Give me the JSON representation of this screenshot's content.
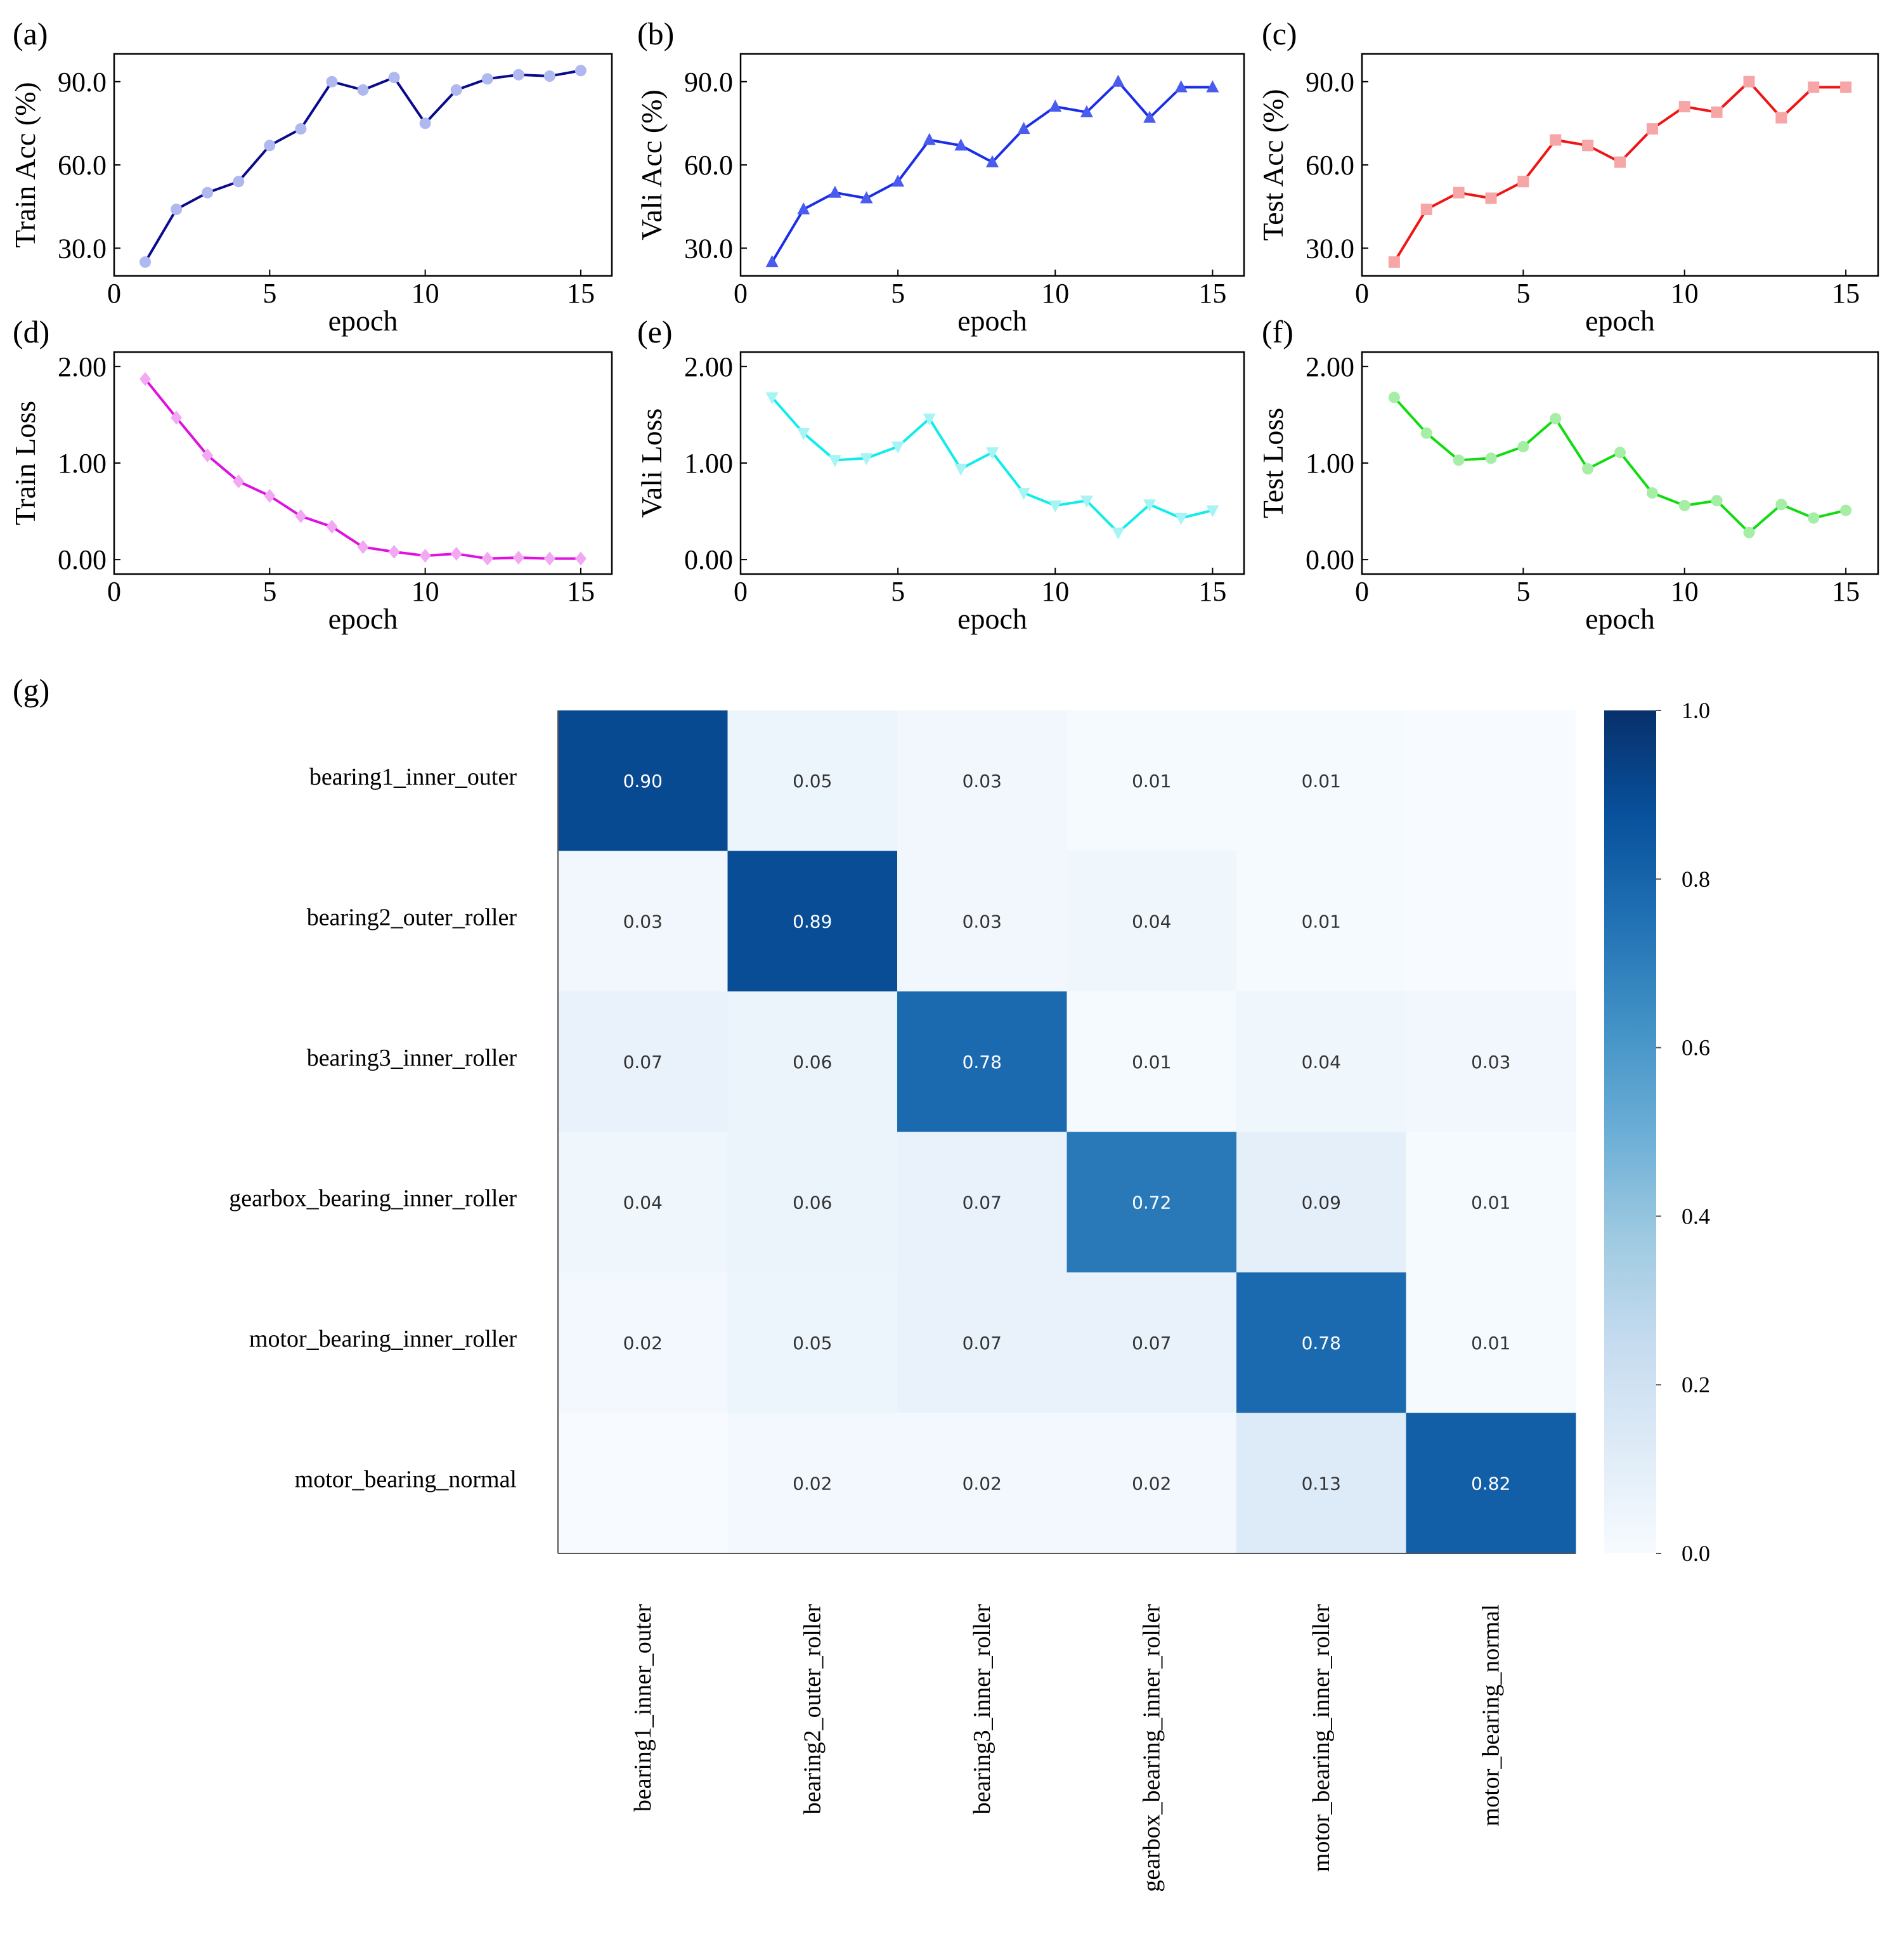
{
  "chart_data": [
    {
      "panel": "(a)",
      "type": "line",
      "xlabel": "epoch",
      "ylabel": "Train Acc (%)",
      "xlim": [
        0,
        16
      ],
      "ylim": [
        20,
        100
      ],
      "xticks": [
        0,
        5,
        10,
        15
      ],
      "xtick_labels": [
        "0",
        "5",
        "10",
        "15"
      ],
      "yticks": [
        30,
        60,
        90
      ],
      "ytick_labels": [
        "30.0",
        "60.0",
        "90.0"
      ],
      "series": [
        {
          "x": [
            1,
            2,
            3,
            4,
            5,
            6,
            7,
            8,
            9,
            10,
            11,
            12,
            13,
            14,
            15
          ],
          "y": [
            25,
            44,
            50,
            54,
            67,
            73,
            90,
            87,
            91.5,
            75,
            87,
            91,
            92.5,
            92,
            94
          ],
          "line_color": "#0a0a8c",
          "marker_color": "#b0b8f0",
          "marker": "circle"
        }
      ],
      "grid": false
    },
    {
      "panel": "(b)",
      "type": "line",
      "xlabel": "epoch",
      "ylabel": "Vali Acc (%)",
      "xlim": [
        0,
        16
      ],
      "ylim": [
        20,
        100
      ],
      "xticks": [
        0,
        5,
        10,
        15
      ],
      "xtick_labels": [
        "0",
        "5",
        "10",
        "15"
      ],
      "yticks": [
        30,
        60,
        90
      ],
      "ytick_labels": [
        "30.0",
        "60.0",
        "90.0"
      ],
      "series": [
        {
          "x": [
            1,
            2,
            3,
            4,
            5,
            6,
            7,
            8,
            9,
            10,
            11,
            12,
            13,
            14,
            15
          ],
          "y": [
            25,
            44,
            50,
            48,
            54,
            69,
            67,
            61,
            73,
            81,
            79,
            90,
            77,
            88,
            88
          ],
          "line_color": "#1a2ee8",
          "marker_color": "#4a5cf0",
          "marker": "triangle-up"
        }
      ],
      "grid": false
    },
    {
      "panel": "(c)",
      "type": "line",
      "xlabel": "epoch",
      "ylabel": "Test Acc (%)",
      "xlim": [
        0,
        16
      ],
      "ylim": [
        20,
        100
      ],
      "xticks": [
        0,
        5,
        10,
        15
      ],
      "xtick_labels": [
        "0",
        "5",
        "10",
        "15"
      ],
      "yticks": [
        30,
        60,
        90
      ],
      "ytick_labels": [
        "30.0",
        "60.0",
        "90.0"
      ],
      "series": [
        {
          "x": [
            1,
            2,
            3,
            4,
            5,
            6,
            7,
            8,
            9,
            10,
            11,
            12,
            13,
            14,
            15
          ],
          "y": [
            25,
            44,
            50,
            48,
            54,
            69,
            67,
            61,
            73,
            81,
            79,
            90,
            77,
            88,
            88
          ],
          "line_color": "#f01414",
          "marker_color": "#f6a6a6",
          "marker": "square"
        }
      ],
      "grid": false
    },
    {
      "panel": "(d)",
      "type": "line",
      "xlabel": "epoch",
      "ylabel": "Train Loss",
      "xlim": [
        0,
        16
      ],
      "ylim": [
        -0.15,
        2.15
      ],
      "xticks": [
        0,
        5,
        10,
        15
      ],
      "xtick_labels": [
        "0",
        "5",
        "10",
        "15"
      ],
      "yticks": [
        0,
        1,
        2
      ],
      "ytick_labels": [
        "0.00",
        "1.00",
        "2.00"
      ],
      "series": [
        {
          "x": [
            1,
            2,
            3,
            4,
            5,
            6,
            7,
            8,
            9,
            10,
            11,
            12,
            13,
            14,
            15
          ],
          "y": [
            1.87,
            1.47,
            1.08,
            0.81,
            0.66,
            0.45,
            0.34,
            0.13,
            0.08,
            0.04,
            0.06,
            0.01,
            0.02,
            0.01,
            0.01
          ],
          "line_color": "#e010e0",
          "marker_color": "#f3a8f3",
          "marker": "diamond"
        }
      ],
      "grid": false
    },
    {
      "panel": "(e)",
      "type": "line",
      "xlabel": "epoch",
      "ylabel": "Vali Loss",
      "xlim": [
        0,
        16
      ],
      "ylim": [
        -0.15,
        2.15
      ],
      "xticks": [
        0,
        5,
        10,
        15
      ],
      "xtick_labels": [
        "0",
        "5",
        "10",
        "15"
      ],
      "yticks": [
        0,
        1,
        2
      ],
      "ytick_labels": [
        "0.00",
        "1.00",
        "2.00"
      ],
      "series": [
        {
          "x": [
            1,
            2,
            3,
            4,
            5,
            6,
            7,
            8,
            9,
            10,
            11,
            12,
            13,
            14,
            15
          ],
          "y": [
            1.68,
            1.31,
            1.03,
            1.05,
            1.17,
            1.46,
            0.94,
            1.11,
            0.69,
            0.56,
            0.61,
            0.28,
            0.57,
            0.43,
            0.51
          ],
          "line_color": "#10ecec",
          "marker_color": "#a6f4f4",
          "marker": "triangle-down"
        }
      ],
      "grid": false
    },
    {
      "panel": "(f)",
      "type": "line",
      "xlabel": "epoch",
      "ylabel": "Test Loss",
      "xlim": [
        0,
        16
      ],
      "ylim": [
        -0.15,
        2.15
      ],
      "xticks": [
        0,
        5,
        10,
        15
      ],
      "xtick_labels": [
        "0",
        "5",
        "10",
        "15"
      ],
      "yticks": [
        0,
        1,
        2
      ],
      "ytick_labels": [
        "0.00",
        "1.00",
        "2.00"
      ],
      "series": [
        {
          "x": [
            1,
            2,
            3,
            4,
            5,
            6,
            7,
            8,
            9,
            10,
            11,
            12,
            13,
            14,
            15
          ],
          "y": [
            1.68,
            1.31,
            1.03,
            1.05,
            1.17,
            1.46,
            0.94,
            1.11,
            0.69,
            0.56,
            0.61,
            0.28,
            0.57,
            0.43,
            0.51
          ],
          "line_color": "#10dc10",
          "marker_color": "#a6eea6",
          "marker": "circle"
        }
      ],
      "grid": false
    },
    {
      "panel": "(g)",
      "type": "heatmap",
      "row_labels": [
        "bearing1_inner_outer",
        "bearing2_outer_roller",
        "bearing3_inner_roller",
        "gearbox_bearing_inner_roller",
        "motor_bearing_inner_roller",
        "motor_bearing_normal"
      ],
      "col_labels": [
        "bearing1_inner_outer",
        "bearing2_outer_roller",
        "bearing3_inner_roller",
        "gearbox_bearing_inner_roller",
        "motor_bearing_inner_roller",
        "motor_bearing_normal"
      ],
      "values": [
        [
          0.9,
          0.05,
          0.03,
          0.01,
          0.01,
          0.0
        ],
        [
          0.03,
          0.89,
          0.03,
          0.04,
          0.01,
          0.0
        ],
        [
          0.07,
          0.06,
          0.78,
          0.01,
          0.04,
          0.03
        ],
        [
          0.04,
          0.06,
          0.07,
          0.72,
          0.09,
          0.01
        ],
        [
          0.02,
          0.05,
          0.07,
          0.07,
          0.78,
          0.01
        ],
        [
          0.0,
          0.02,
          0.02,
          0.02,
          0.13,
          0.82
        ]
      ],
      "value_labels": [
        [
          "0.90",
          "0.05",
          "0.03",
          "0.01",
          "0.01",
          ""
        ],
        [
          "0.03",
          "0.89",
          "0.03",
          "0.04",
          "0.01",
          ""
        ],
        [
          "0.07",
          "0.06",
          "0.78",
          "0.01",
          "0.04",
          "0.03"
        ],
        [
          "0.04",
          "0.06",
          "0.07",
          "0.72",
          "0.09",
          "0.01"
        ],
        [
          "0.02",
          "0.05",
          "0.07",
          "0.07",
          "0.78",
          "0.01"
        ],
        [
          "",
          "0.02",
          "0.02",
          "0.02",
          "0.13",
          "0.82"
        ]
      ],
      "colormap": "Blues",
      "colorbar_range": [
        0.0,
        1.0
      ],
      "colorbar_ticks": [
        0.0,
        0.2,
        0.4,
        0.6,
        0.8,
        1.0
      ],
      "colorbar_tick_labels": [
        "0.0",
        "0.2",
        "0.4",
        "0.6",
        "0.8",
        "1.0"
      ]
    }
  ]
}
